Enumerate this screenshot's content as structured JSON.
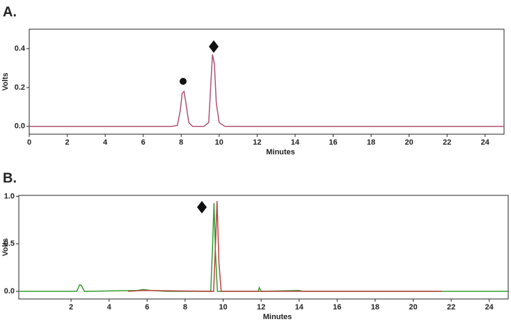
{
  "chart_data": [
    {
      "type": "line",
      "title": "A.",
      "xlabel": "Minutes",
      "ylabel": "Volts",
      "xlim": [
        0,
        25
      ],
      "xticks": [
        0,
        2,
        4,
        6,
        8,
        10,
        12,
        14,
        16,
        18,
        20,
        22,
        24
      ],
      "ylim": [
        -0.04,
        0.5
      ],
      "yticks": [
        {
          "value": 0,
          "label": "0.0"
        },
        0.2,
        0.4
      ],
      "series": [
        {
          "color": "#b05070",
          "x": [
            0,
            7.5,
            7.8,
            7.95,
            8.05,
            8.15,
            8.25,
            8.4,
            8.6,
            9.2,
            9.45,
            9.55,
            9.65,
            9.75,
            9.85,
            10,
            10.3,
            25
          ],
          "values": [
            0,
            0,
            0.005,
            0.08,
            0.17,
            0.18,
            0.12,
            0.02,
            0,
            0,
            0.02,
            0.2,
            0.37,
            0.32,
            0.12,
            0.02,
            0,
            0
          ]
        }
      ]
    },
    {
      "type": "line",
      "title": "B.",
      "xlabel": "Minutes",
      "ylabel": "Volts",
      "xlim": [
        -0.75,
        25
      ],
      "xticks": [
        2,
        4,
        6,
        8,
        10,
        12,
        14,
        16,
        18,
        20,
        22,
        24
      ],
      "ylim": [
        -0.08,
        1.01
      ],
      "yticks": [
        {
          "value": 0,
          "label": "0.0"
        },
        0.5,
        {
          "value": 1,
          "label": "1.0"
        }
      ],
      "series": [
        {
          "color": "#2e9e2e",
          "x": [
            -0.75,
            2.3,
            2.45,
            2.55,
            2.7,
            5.5,
            5.8,
            6.2,
            7,
            9.35,
            9.45,
            9.52,
            9.6,
            9.7,
            11.85,
            11.9,
            12,
            14,
            14.2,
            25
          ],
          "values": [
            0,
            0,
            0.07,
            0.06,
            0,
            0.01,
            0.02,
            0.01,
            0,
            0,
            0.5,
            0.93,
            0.4,
            0,
            0,
            0.04,
            0,
            0.01,
            0,
            0
          ]
        },
        {
          "color": "#c04040",
          "x": [
            5,
            5.8,
            9.5,
            9.6,
            9.68,
            9.78,
            9.9,
            21.5
          ],
          "values": [
            0,
            0.01,
            0,
            0.5,
            0.95,
            0.3,
            0,
            0
          ]
        }
      ]
    }
  ]
}
